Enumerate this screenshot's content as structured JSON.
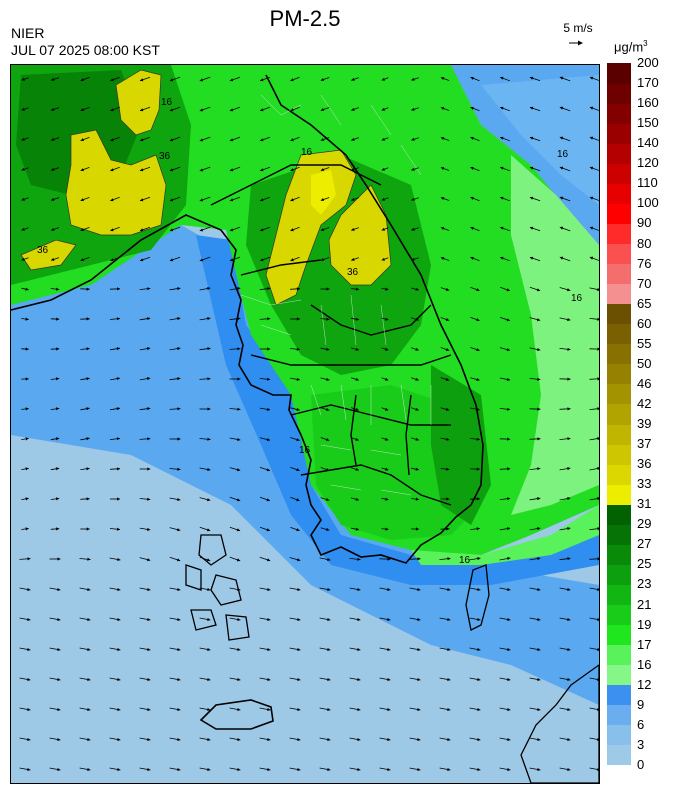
{
  "header": {
    "title": "PM-2.5",
    "agency": "NIER",
    "timestamp": "JUL 07 2025 08:00 KST"
  },
  "wind_reference": {
    "label": "5 m/s"
  },
  "units": {
    "base": "μg/m",
    "exponent": "3"
  },
  "legend": {
    "ticks": [
      "0",
      "3",
      "6",
      "9",
      "12",
      "16",
      "17",
      "19",
      "21",
      "23",
      "25",
      "27",
      "29",
      "31",
      "33",
      "36",
      "37",
      "39",
      "42",
      "46",
      "50",
      "55",
      "60",
      "65",
      "70",
      "76",
      "80",
      "90",
      "100",
      "110",
      "120",
      "140",
      "150",
      "160",
      "170",
      "200"
    ],
    "colors": [
      "#9ecae8",
      "#88bfeb",
      "#6aaef0",
      "#3c91f0",
      "#86f686",
      "#5af25a",
      "#20e620",
      "#19cc19",
      "#12b612",
      "#0e9f0e",
      "#098a09",
      "#057305",
      "#026202",
      "#eded00",
      "#dcd700",
      "#cec600",
      "#c0b500",
      "#b2a400",
      "#a49300",
      "#968200",
      "#887100",
      "#7a6000",
      "#6a5000",
      "#f59090",
      "#f56e6e",
      "#fa5050",
      "#ff2a2a",
      "#ff0000",
      "#e60000",
      "#cd0000",
      "#b40000",
      "#9b0000",
      "#820000",
      "#6e0000",
      "#5a0000"
    ]
  },
  "map": {
    "region": "Korean Peninsula",
    "contour_labels": [
      "16",
      "36",
      "16",
      "36",
      "36",
      "16",
      "16",
      "16",
      "16"
    ],
    "colors": {
      "sea_low": "#9dc8e6",
      "sea_mid": "#5aa8f0",
      "coast": "#2f8ef0",
      "land_low": "#8ef58e",
      "land_mid": "#22dd22",
      "land_high": "#0fa50f",
      "land_peak": "#078307",
      "hotspot": "#d8d800",
      "hotspot_core": "#eded00"
    }
  }
}
